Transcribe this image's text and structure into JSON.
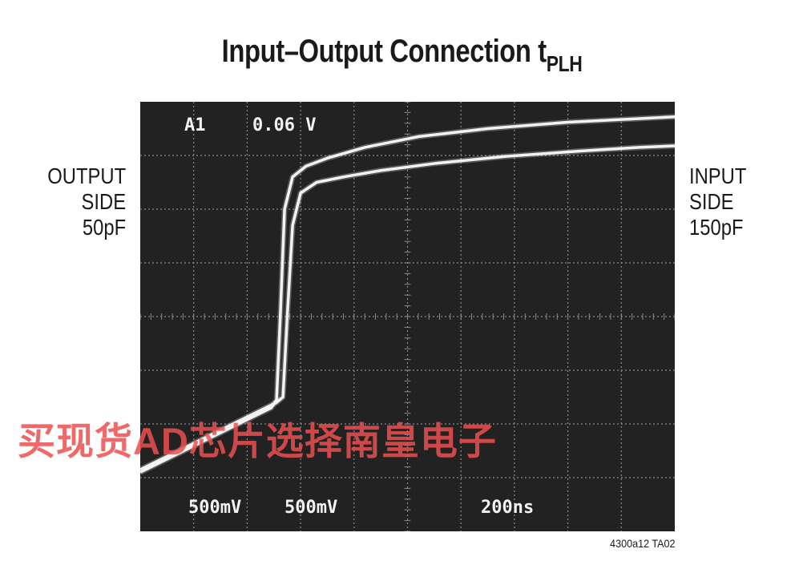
{
  "title": {
    "main": "Input–Output Connection t",
    "subscript": "PLH"
  },
  "labels": {
    "left": [
      "OUTPUT",
      "SIDE",
      "50pF"
    ],
    "right": [
      "INPUT",
      "SIDE",
      "150pF"
    ]
  },
  "figure_id": "4300a12 TA02",
  "watermark": "买现货AD芯片选择南皇电子",
  "colors": {
    "screen": "#222222",
    "grid": "#8a8a8a",
    "trace": "#f2f2f2",
    "text": "#1a1a1a"
  },
  "chart_data": {
    "type": "line",
    "title": "Input–Output Connection tPLH",
    "grid": true,
    "divisions": {
      "x": 10,
      "y": 8
    },
    "xlim": [
      0,
      10
    ],
    "ylim": [
      0,
      8
    ],
    "readouts": {
      "trigger": "A1",
      "trigger_level": "0.06 V",
      "ch1_scale": "500mV",
      "ch2_scale": "500mV",
      "timebase": "200ns"
    },
    "series": [
      {
        "x": [
          0,
          2.45,
          2.55,
          2.62,
          2.7,
          2.85,
          3.1,
          3.5,
          4.2,
          5.2,
          6.5,
          8.0,
          9.2,
          10.0
        ],
        "y": [
          1.1,
          2.3,
          2.45,
          4.0,
          6.0,
          6.6,
          6.8,
          6.95,
          7.15,
          7.35,
          7.5,
          7.62,
          7.68,
          7.72
        ]
      },
      {
        "x": [
          0,
          2.55,
          2.67,
          2.75,
          2.85,
          3.0,
          3.3,
          3.8,
          4.5,
          5.5,
          6.8,
          8.2,
          9.3,
          10.0
        ],
        "y": [
          1.15,
          2.4,
          2.5,
          4.0,
          5.7,
          6.3,
          6.5,
          6.6,
          6.72,
          6.85,
          6.98,
          7.08,
          7.15,
          7.18
        ]
      }
    ]
  }
}
